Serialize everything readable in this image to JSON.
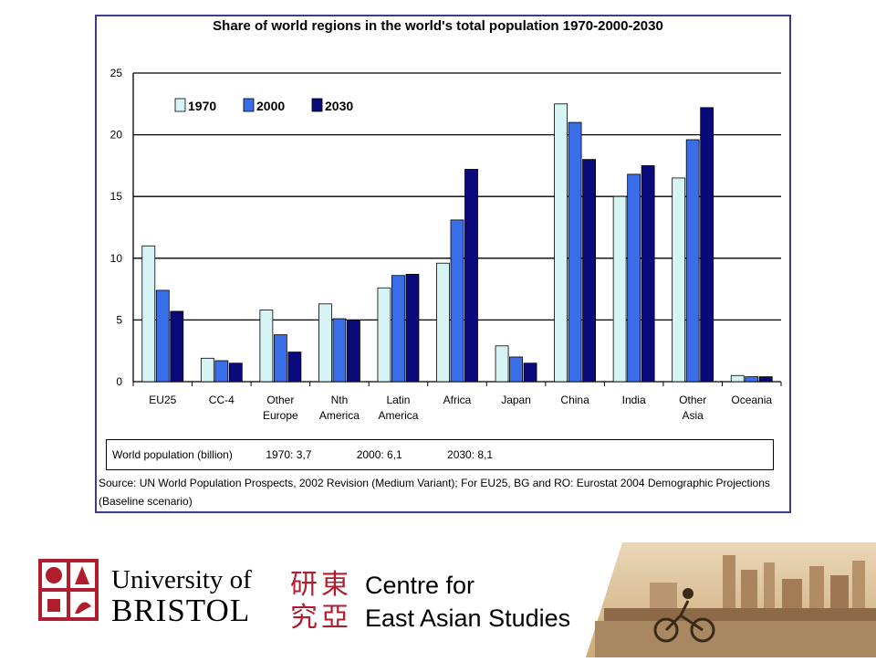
{
  "chart_data": {
    "type": "bar",
    "title": "Share of world regions in the world's total population 1970-2000-2030",
    "categories": [
      [
        "EU25"
      ],
      [
        "CC-4"
      ],
      [
        "Other",
        "Europe"
      ],
      [
        "Nth",
        "America"
      ],
      [
        "Latin",
        "America"
      ],
      [
        "Africa"
      ],
      [
        "Japan"
      ],
      [
        "China"
      ],
      [
        "India"
      ],
      [
        "Other",
        "Asia"
      ],
      [
        "Oceania"
      ]
    ],
    "series": [
      {
        "name": "1970",
        "color": "#d6f4f4",
        "values": [
          11.0,
          1.9,
          5.8,
          6.3,
          7.6,
          9.6,
          2.9,
          22.5,
          15.0,
          16.5,
          0.5
        ]
      },
      {
        "name": "2000",
        "color": "#3a6ee8",
        "values": [
          7.4,
          1.7,
          3.8,
          5.1,
          8.6,
          13.1,
          2.0,
          21.0,
          16.8,
          19.6,
          0.4
        ]
      },
      {
        "name": "2030",
        "color": "#0a0a7a",
        "values": [
          5.7,
          1.5,
          2.4,
          5.0,
          8.7,
          17.2,
          1.5,
          18.0,
          17.5,
          22.2,
          0.4
        ]
      }
    ],
    "ylim": [
      0,
      25
    ],
    "yticks": [
      0,
      5,
      10,
      15,
      20,
      25
    ],
    "grid": true,
    "legend_position": "top-left"
  },
  "world_population": {
    "label": "World population (billion)",
    "entries": [
      "1970:  3,7",
      "2000:  6,1",
      "2030:  8,1"
    ]
  },
  "source": "Source: UN World Population Prospects, 2002 Revision (Medium Variant); For EU25, BG and RO: Eurostat 2004 Demographic Projections (Baseline scenario)",
  "footer": {
    "university_line1": "University of",
    "university_line2": "BRISTOL",
    "centre_line1": "Centre for",
    "centre_line2": "East Asian Studies",
    "chinese_chars": [
      "研",
      "東",
      "究",
      "亞"
    ]
  }
}
